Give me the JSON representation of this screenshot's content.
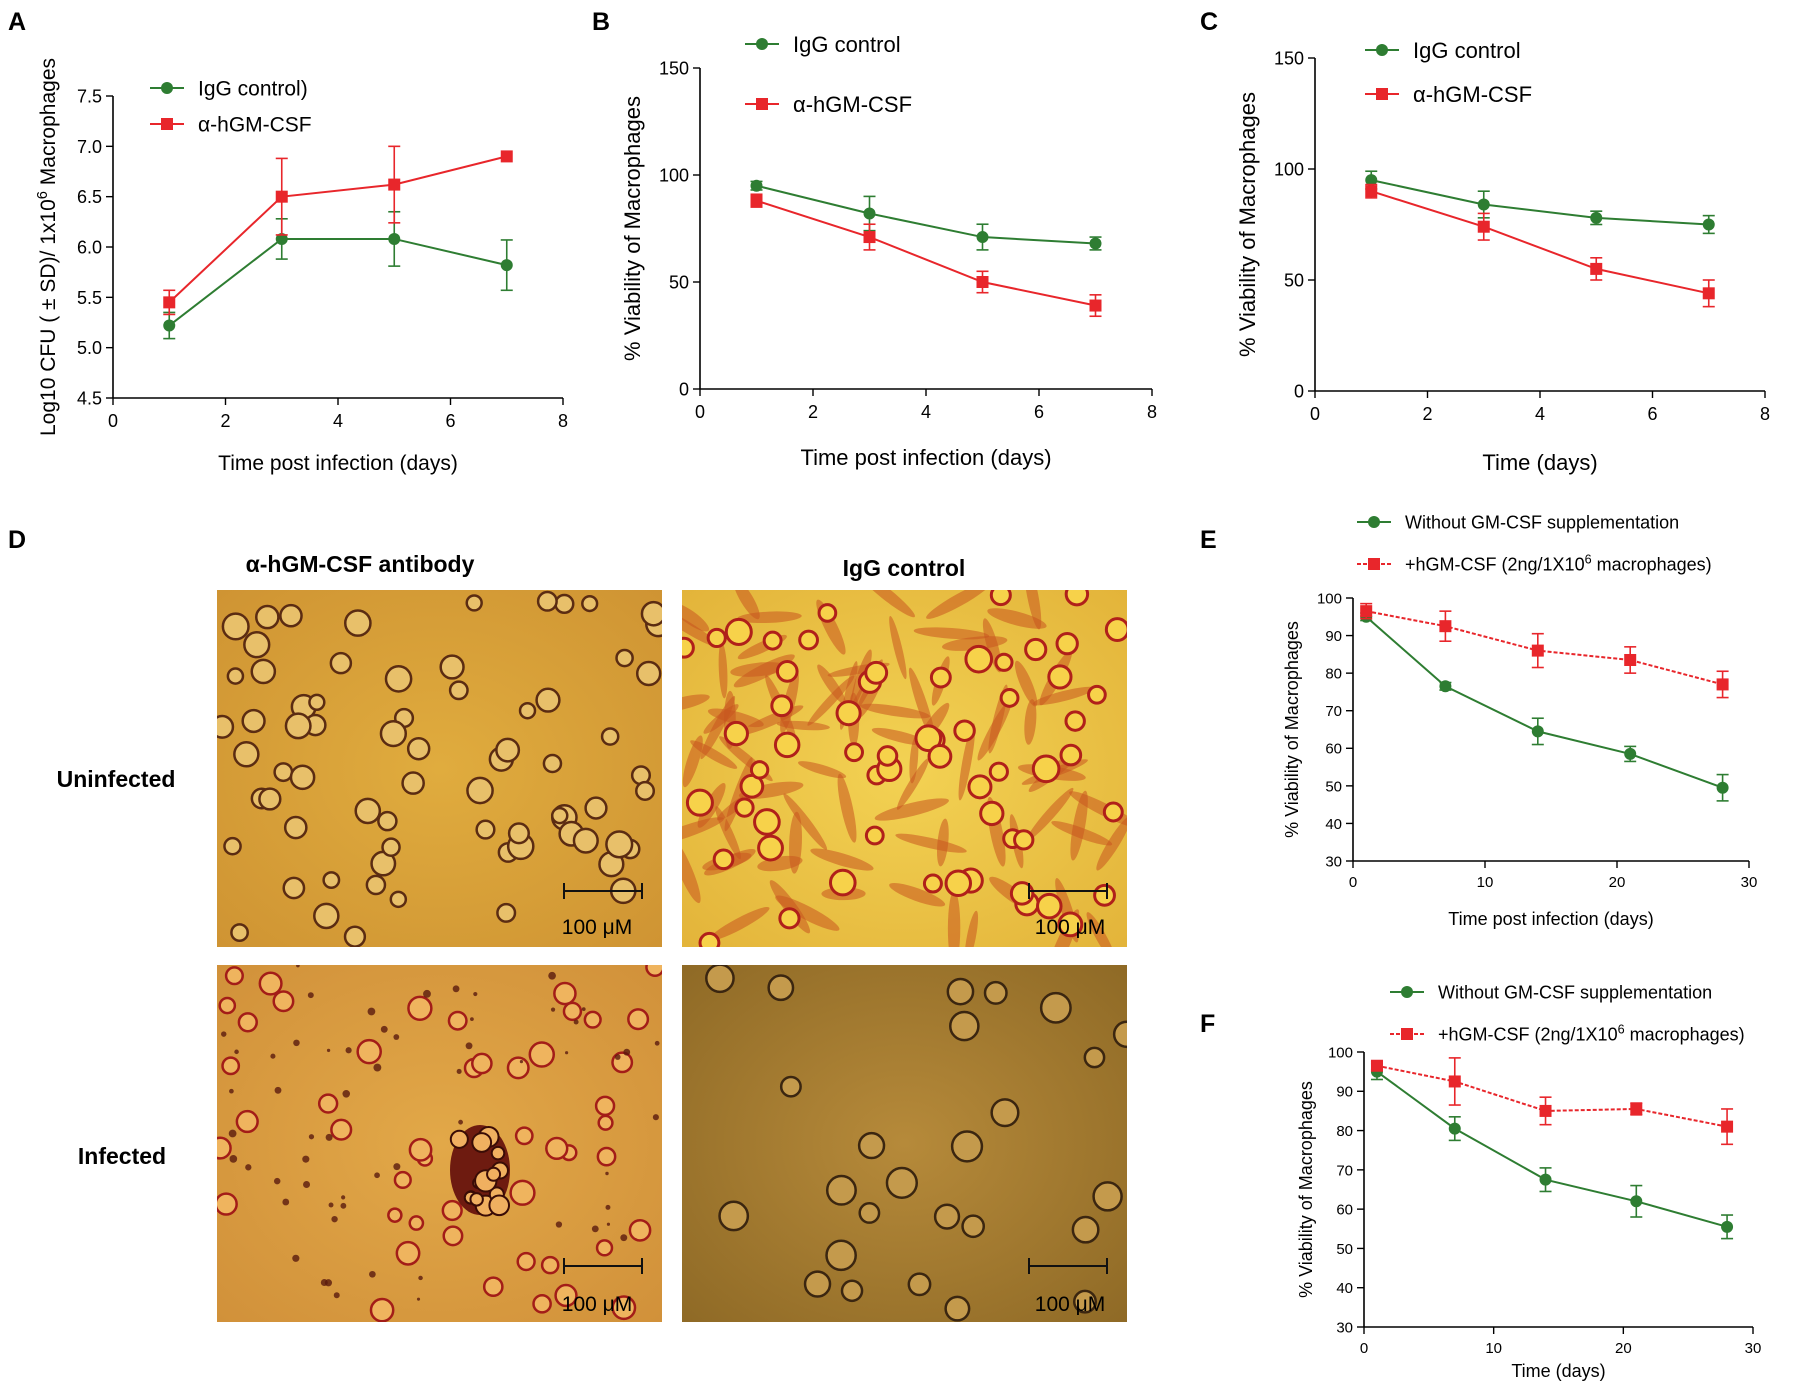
{
  "colors": {
    "green": "#2e7d32",
    "red": "#e8262b",
    "axis": "#000000"
  },
  "panel_labels": {
    "a": "A",
    "b": "B",
    "c": "C",
    "d": "D",
    "e": "E",
    "f": "F"
  },
  "micrographs": {
    "col_left": "α-hGM-CSF antibody",
    "col_right": "IgG control",
    "row_top": "Uninfected",
    "row_bottom": "Infected",
    "scale_bar": "100 μM"
  },
  "chart_data": [
    {
      "id": "A",
      "type": "line",
      "title": "",
      "xlabel": "Time post infection (days)",
      "ylabel_base": "Log10 CFU ( ± SD)/ 1x10",
      "ylabel_sup": "6",
      "ylabel_tail": " Macrophages",
      "xlim": [
        0,
        8
      ],
      "ylim": [
        4.5,
        7.5
      ],
      "xticks": [
        0,
        2,
        4,
        6,
        8
      ],
      "yticks": [
        4.5,
        5.0,
        5.5,
        6.0,
        6.5,
        7.0,
        7.5
      ],
      "ytick_labels": [
        "4.5",
        "5.0",
        "5.5",
        "6.0",
        "6.5",
        "7.0",
        "7.5"
      ],
      "legend": "top-left",
      "series": [
        {
          "name": "IgG control)",
          "color": "#2e7d32",
          "marker": "circle",
          "x": [
            1,
            3,
            5,
            7
          ],
          "y": [
            5.22,
            6.08,
            6.08,
            5.82
          ],
          "err": [
            0.13,
            0.2,
            0.27,
            0.25
          ]
        },
        {
          "name": "α-hGM-CSF",
          "color": "#e8262b",
          "marker": "square",
          "x": [
            1,
            3,
            5,
            7
          ],
          "y": [
            5.45,
            6.5,
            6.62,
            6.9
          ],
          "err": [
            0.12,
            0.38,
            0.38,
            0.0
          ]
        }
      ]
    },
    {
      "id": "B",
      "type": "line",
      "title": "",
      "xlabel": "Time post infection (days)",
      "ylabel": "% Viability of Macrophages",
      "xlim": [
        0,
        8
      ],
      "ylim": [
        0,
        150
      ],
      "xticks": [
        0,
        2,
        4,
        6,
        8
      ],
      "yticks": [
        0,
        50,
        100,
        150
      ],
      "ytick_labels": [
        "0",
        "50",
        "100",
        "150"
      ],
      "legend": "top",
      "series": [
        {
          "name": "IgG control",
          "color": "#2e7d32",
          "marker": "circle",
          "x": [
            1,
            3,
            5,
            7
          ],
          "y": [
            95,
            82,
            71,
            68
          ],
          "err": [
            2,
            8,
            6,
            3
          ]
        },
        {
          "name": "α-hGM-CSF",
          "color": "#e8262b",
          "marker": "square",
          "x": [
            1,
            3,
            5,
            7
          ],
          "y": [
            88,
            71,
            50,
            39
          ],
          "err": [
            3,
            6,
            5,
            5
          ]
        }
      ]
    },
    {
      "id": "C",
      "type": "line",
      "title": "",
      "xlabel": "Time (days)",
      "ylabel": "% Viability of Macrophages",
      "xlim": [
        0,
        8
      ],
      "ylim": [
        0,
        150
      ],
      "xticks": [
        0,
        2,
        4,
        6,
        8
      ],
      "yticks": [
        0,
        50,
        100,
        150
      ],
      "ytick_labels": [
        "0",
        "50",
        "100",
        "150"
      ],
      "legend": "top",
      "series": [
        {
          "name": "IgG control",
          "color": "#2e7d32",
          "marker": "circle",
          "x": [
            1,
            3,
            5,
            7
          ],
          "y": [
            95,
            84,
            78,
            75
          ],
          "err": [
            4,
            6,
            3,
            4
          ]
        },
        {
          "name": "α-hGM-CSF",
          "color": "#e8262b",
          "marker": "square",
          "x": [
            1,
            3,
            5,
            7
          ],
          "y": [
            90,
            74,
            55,
            44
          ],
          "err": [
            3,
            6,
            5,
            6
          ]
        }
      ]
    },
    {
      "id": "E",
      "type": "line",
      "title": "",
      "xlabel": "Time post infection (days)",
      "ylabel": "% Viability of Macrophages",
      "xlim": [
        0,
        30
      ],
      "ylim": [
        30,
        100
      ],
      "xticks": [
        0,
        10,
        20,
        30
      ],
      "yticks": [
        30,
        40,
        50,
        60,
        70,
        80,
        90,
        100
      ],
      "ytick_labels": [
        "30",
        "40",
        "50",
        "60",
        "70",
        "80",
        "90",
        "100"
      ],
      "legend": "top",
      "series": [
        {
          "name": "Without GM-CSF supplementation",
          "color": "#2e7d32",
          "marker": "circle",
          "x": [
            1,
            7,
            14,
            21,
            28
          ],
          "y": [
            95,
            76.5,
            64.5,
            58.5,
            49.5
          ],
          "err": [
            1,
            1,
            3.5,
            2,
            3.5
          ]
        },
        {
          "name_base": "+hGM-CSF (2ng/1X10",
          "name_sup": "6",
          "name_tail": " macrophages)",
          "color": "#e8262b",
          "marker": "square",
          "dashed": true,
          "x": [
            1,
            7,
            14,
            21,
            28
          ],
          "y": [
            96.5,
            92.5,
            86,
            83.5,
            77
          ],
          "err": [
            2,
            4,
            4.5,
            3.5,
            3.5
          ]
        }
      ]
    },
    {
      "id": "F",
      "type": "line",
      "title": "",
      "xlabel": "Time (days)",
      "ylabel": "% Viability of Macrophages",
      "xlim": [
        0,
        30
      ],
      "ylim": [
        30,
        100
      ],
      "xticks": [
        0,
        10,
        20,
        30
      ],
      "yticks": [
        30,
        40,
        50,
        60,
        70,
        80,
        90,
        100
      ],
      "ytick_labels": [
        "30",
        "40",
        "50",
        "60",
        "70",
        "80",
        "90",
        "100"
      ],
      "legend": "top",
      "series": [
        {
          "name": "Without GM-CSF supplementation",
          "color": "#2e7d32",
          "marker": "circle",
          "x": [
            1,
            7,
            14,
            21,
            28
          ],
          "y": [
            95,
            80.5,
            67.5,
            62,
            55.5
          ],
          "err": [
            2,
            3,
            3,
            4,
            3
          ]
        },
        {
          "name_base": "+hGM-CSF (2ng/1X10",
          "name_sup": "6",
          "name_tail": " macrophages)",
          "color": "#e8262b",
          "marker": "square",
          "dashed": true,
          "x": [
            1,
            7,
            14,
            21,
            28
          ],
          "y": [
            96.5,
            92.5,
            85,
            85.5,
            81
          ],
          "err": [
            1,
            6,
            3.5,
            1.5,
            4.5
          ]
        }
      ]
    }
  ]
}
